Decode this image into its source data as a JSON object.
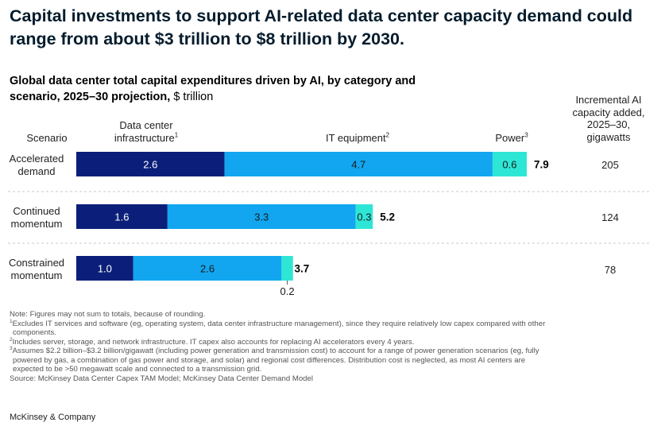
{
  "headline": "Capital investments to support AI-related data center capacity demand could range from about $3 trillion to $8 trillion by 2030.",
  "subtitle_bold": "Global data center total capital expenditures driven by AI, by category and scenario, 2025–30 projection,",
  "subtitle_unit": " $ trillion",
  "headers": {
    "scenario": "Scenario",
    "infra_line1": "Data center",
    "infra_line2": "infrastructure",
    "infra_sup": "1",
    "it": "IT equipment",
    "it_sup": "2",
    "power": "Power",
    "power_sup": "3",
    "incremental": "Incremental AI capacity added, 2025–30, gigawatts"
  },
  "colors": {
    "infrastructure": "#0b1f7a",
    "it_equipment": "#12a6f0",
    "power": "#2ee6d6",
    "divider": "#c8c8c8"
  },
  "chart_data": {
    "type": "bar",
    "orientation": "horizontal",
    "stacked": true,
    "categories": [
      "Accelerated demand",
      "Continued momentum",
      "Constrained momentum"
    ],
    "category_lines": [
      [
        "Accelerated",
        "demand"
      ],
      [
        "Continued",
        "momentum"
      ],
      [
        "Constrained",
        "momentum"
      ]
    ],
    "series": [
      {
        "name": "Data center infrastructure",
        "values": [
          2.6,
          1.6,
          1.0
        ],
        "labels": [
          "2.6",
          "1.6",
          "1.0"
        ]
      },
      {
        "name": "IT equipment",
        "values": [
          4.7,
          3.3,
          2.6
        ],
        "labels": [
          "4.7",
          "3.3",
          "2.6"
        ]
      },
      {
        "name": "Power",
        "values": [
          0.6,
          0.3,
          0.2
        ],
        "labels": [
          "0.6",
          "0.3",
          "0.2"
        ]
      }
    ],
    "totals": [
      "7.9",
      "5.2",
      "3.7"
    ],
    "total_values": [
      7.9,
      5.2,
      3.7
    ],
    "incremental_gw": [
      "205",
      "124",
      "78"
    ],
    "xlim": [
      0,
      7.9
    ],
    "grid": false
  },
  "footnotes": {
    "note": "Note: Figures may not sum to totals, because of rounding.",
    "f1_sup": "1",
    "f1": "Excludes IT services and software (eg, operating system, data center infrastructure management), since they require relatively low capex compared with other",
    "f1b": "components.",
    "f2_sup": "2",
    "f2": "Includes server, storage, and network infrastructure. IT capex also accounts for replacing AI accelerators every 4 years.",
    "f3_sup": "3",
    "f3": "Assumes $2.2 billion–$3.2 billion/gigawatt (including power generation and transmission cost) to account for a range of power generation scenarios (eg, fully",
    "f3b": "powered by gas, a combination of gas power and storage, and solar) and regional cost differences. Distribution cost is neglected, as most AI centers are",
    "f3c": "expected to be >50 megawatt scale and connected to a transmission grid.",
    "source": "Source: McKinsey Data Center Capex TAM Model; McKinsey Data Center Demand Model"
  },
  "brand": "McKinsey & Company"
}
